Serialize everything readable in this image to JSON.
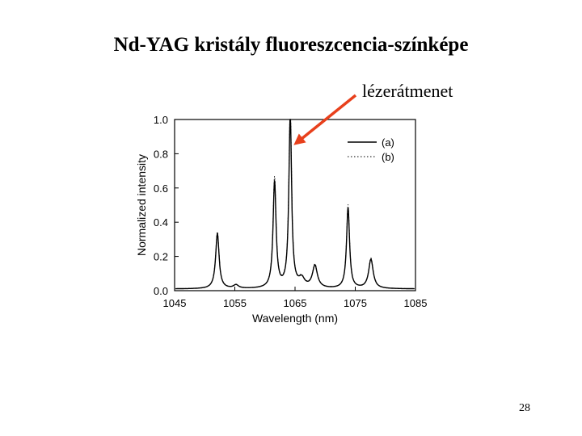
{
  "slide": {
    "title": "Nd-YAG kristály fluoreszcencia-színképe",
    "annotation": "lézerátmenet",
    "page_number": "28",
    "arrow_color": "#e8401c"
  },
  "chart_data": {
    "type": "line",
    "title": "",
    "xlabel": "Wavelength (nm)",
    "ylabel": "Normalized intensity",
    "xlim": [
      1045,
      1085
    ],
    "ylim": [
      0,
      1.0
    ],
    "xticks": [
      1045,
      1055,
      1065,
      1075,
      1085
    ],
    "yticks": [
      0.0,
      0.2,
      0.4,
      0.6,
      0.8,
      1.0
    ],
    "ytick_labels": [
      "0.0",
      "0.2",
      "0.4",
      "0.6",
      "0.8",
      "1.0"
    ],
    "grid": false,
    "legend_position": "top-right",
    "baseline": 0.01,
    "peaks": [
      {
        "x": 1052.1,
        "y": 0.32,
        "width": 0.35
      },
      {
        "x": 1055.2,
        "y": 0.02,
        "width": 0.5
      },
      {
        "x": 1061.6,
        "y": 0.62,
        "width": 0.3
      },
      {
        "x": 1064.2,
        "y": 1.0,
        "width": 0.28
      },
      {
        "x": 1066.1,
        "y": 0.05,
        "width": 0.6
      },
      {
        "x": 1068.3,
        "y": 0.13,
        "width": 0.5
      },
      {
        "x": 1073.8,
        "y": 0.47,
        "width": 0.3
      },
      {
        "x": 1077.6,
        "y": 0.17,
        "width": 0.45
      }
    ],
    "series": [
      {
        "name": "(a)",
        "style": "solid"
      },
      {
        "name": "(b)",
        "style": "dotted"
      }
    ]
  }
}
